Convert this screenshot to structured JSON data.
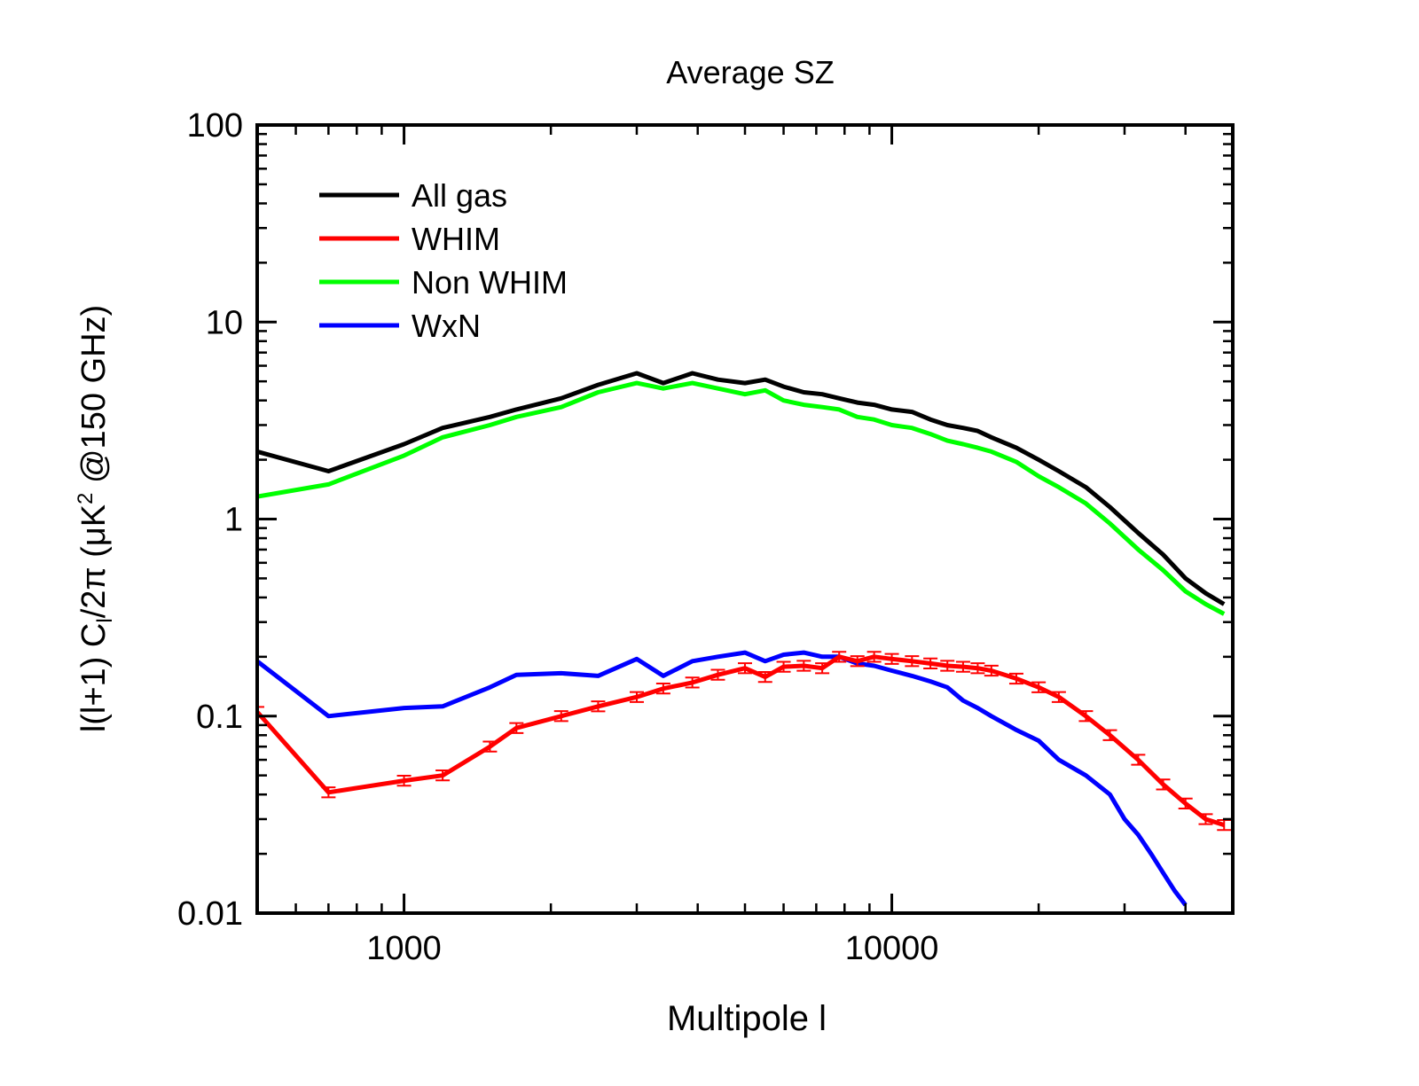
{
  "chart_data": {
    "type": "line",
    "title": "Average SZ",
    "xlabel": "Multipole l",
    "ylabel": "l(l+1) C_l/2π (μK^2 @150 GHz)",
    "ylabel_parts": {
      "pre": "l(l+1) C",
      "sub": "l",
      "mid": "/2π (μK",
      "sup": "2",
      "post": " @150 GHz)"
    },
    "xscale": "log",
    "yscale": "log",
    "xlim": [
      500,
      50000
    ],
    "ylim": [
      0.01,
      100
    ],
    "xticks": [
      1000,
      10000
    ],
    "xtick_labels": [
      "1000",
      "10000"
    ],
    "yticks": [
      0.01,
      0.1,
      1,
      10,
      100
    ],
    "ytick_labels": [
      "0.01",
      "0.1",
      "1",
      "10",
      "100"
    ],
    "legend_position": "top-left",
    "grid": false,
    "series": [
      {
        "name": "All gas",
        "color": "#000000",
        "x": [
          500,
          700,
          1000,
          1200,
          1500,
          1700,
          2100,
          2500,
          3000,
          3400,
          3900,
          4400,
          5000,
          5500,
          6000,
          6600,
          7200,
          7800,
          8500,
          9200,
          10000,
          11000,
          12000,
          13000,
          14000,
          15000,
          16000,
          18000,
          20000,
          22000,
          25000,
          28000,
          32000,
          36000,
          40000,
          44000,
          48000
        ],
        "y": [
          2.2,
          1.75,
          2.4,
          2.9,
          3.3,
          3.6,
          4.1,
          4.8,
          5.5,
          4.9,
          5.5,
          5.1,
          4.9,
          5.1,
          4.7,
          4.4,
          4.3,
          4.1,
          3.9,
          3.8,
          3.6,
          3.5,
          3.2,
          3.0,
          2.9,
          2.8,
          2.6,
          2.3,
          2.0,
          1.75,
          1.45,
          1.15,
          0.85,
          0.66,
          0.5,
          0.42,
          0.37
        ]
      },
      {
        "name": "WHIM",
        "color": "#ff0000",
        "x": [
          500,
          700,
          1000,
          1200,
          1500,
          1700,
          2100,
          2500,
          3000,
          3400,
          3900,
          4400,
          5000,
          5500,
          6000,
          6600,
          7200,
          7800,
          8500,
          9200,
          10000,
          11000,
          12000,
          13000,
          14000,
          15000,
          16000,
          18000,
          20000,
          22000,
          25000,
          28000,
          32000,
          36000,
          40000,
          44000,
          48000
        ],
        "y": [
          0.105,
          0.041,
          0.047,
          0.05,
          0.07,
          0.087,
          0.1,
          0.112,
          0.125,
          0.138,
          0.148,
          0.162,
          0.175,
          0.158,
          0.178,
          0.18,
          0.175,
          0.2,
          0.19,
          0.2,
          0.195,
          0.19,
          0.185,
          0.18,
          0.178,
          0.175,
          0.17,
          0.155,
          0.14,
          0.125,
          0.1,
          0.08,
          0.06,
          0.045,
          0.036,
          0.03,
          0.028
        ]
      },
      {
        "name": "Non WHIM",
        "color": "#00ff00",
        "x": [
          500,
          700,
          1000,
          1200,
          1500,
          1700,
          2100,
          2500,
          3000,
          3400,
          3900,
          4400,
          5000,
          5500,
          6000,
          6600,
          7200,
          7800,
          8500,
          9200,
          10000,
          11000,
          12000,
          13000,
          14000,
          15000,
          16000,
          18000,
          20000,
          22000,
          25000,
          28000,
          32000,
          36000,
          40000,
          44000,
          48000
        ],
        "y": [
          1.3,
          1.5,
          2.1,
          2.6,
          3.0,
          3.3,
          3.7,
          4.4,
          4.9,
          4.6,
          4.9,
          4.6,
          4.3,
          4.5,
          4.0,
          3.8,
          3.7,
          3.6,
          3.3,
          3.2,
          3.0,
          2.9,
          2.7,
          2.5,
          2.4,
          2.3,
          2.2,
          1.95,
          1.65,
          1.45,
          1.2,
          0.95,
          0.7,
          0.55,
          0.43,
          0.37,
          0.33
        ]
      },
      {
        "name": "WxN",
        "color": "#0000ff",
        "x": [
          500,
          700,
          1000,
          1200,
          1500,
          1700,
          2100,
          2500,
          3000,
          3400,
          3900,
          4400,
          5000,
          5500,
          6000,
          6600,
          7200,
          7800,
          8500,
          9200,
          10000,
          11000,
          12000,
          13000,
          14000,
          15000,
          16000,
          18000,
          20000,
          22000,
          25000,
          28000,
          30000,
          32000,
          34000,
          36000,
          38000,
          40000
        ],
        "y": [
          0.19,
          0.1,
          0.11,
          0.112,
          0.14,
          0.162,
          0.165,
          0.16,
          0.195,
          0.16,
          0.19,
          0.2,
          0.21,
          0.19,
          0.205,
          0.21,
          0.2,
          0.2,
          0.185,
          0.18,
          0.17,
          0.16,
          0.15,
          0.14,
          0.12,
          0.11,
          0.1,
          0.085,
          0.075,
          0.06,
          0.05,
          0.04,
          0.03,
          0.025,
          0.02,
          0.016,
          0.013,
          0.011
        ]
      }
    ]
  }
}
